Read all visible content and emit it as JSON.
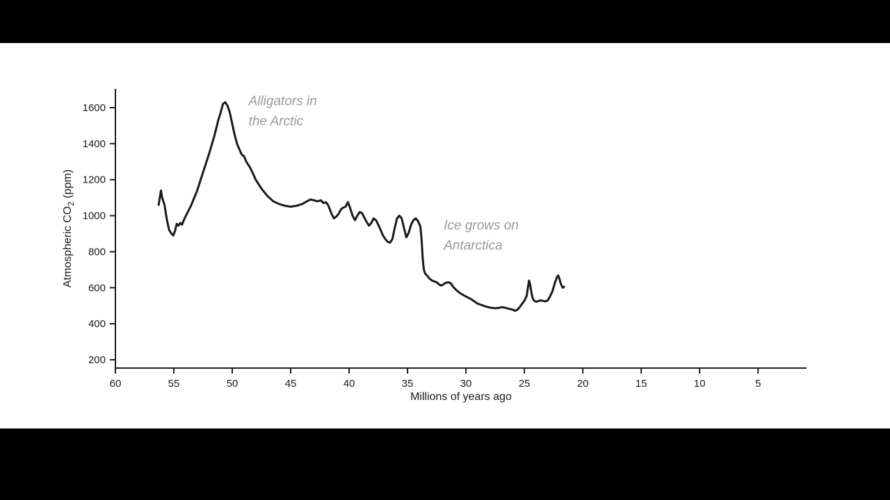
{
  "frame": {
    "background": "#000000",
    "canvas_background": "#ffffff"
  },
  "chart_data": {
    "type": "line",
    "title": "",
    "xlabel": "Millions of years ago",
    "ylabel_parts": {
      "prefix": "Atmospheric CO",
      "subscript": "2",
      "suffix": " (ppm)"
    },
    "x_axis_reversed": true,
    "xlim": [
      60,
      0.85
    ],
    "ylim": [
      154,
      1704
    ],
    "x_ticks": [
      60,
      55,
      50,
      45,
      40,
      35,
      30,
      25,
      20,
      15,
      10,
      5
    ],
    "y_ticks": [
      200,
      400,
      600,
      800,
      1000,
      1200,
      1400,
      1600
    ],
    "grid": false,
    "legend": "none",
    "axis_color": "#1a1a1a",
    "line_color": "#1a1a1a",
    "line_width": 3,
    "annotation_color": "#9a9a9a",
    "series": [
      {
        "name": "Atmospheric CO2",
        "points": [
          [
            56.3,
            1060
          ],
          [
            56.1,
            1140
          ],
          [
            56.0,
            1100
          ],
          [
            55.8,
            1060
          ],
          [
            55.6,
            980
          ],
          [
            55.4,
            920
          ],
          [
            55.2,
            900
          ],
          [
            55.05,
            890
          ],
          [
            54.9,
            915
          ],
          [
            54.75,
            955
          ],
          [
            54.6,
            945
          ],
          [
            54.45,
            960
          ],
          [
            54.3,
            950
          ],
          [
            54.15,
            975
          ],
          [
            54.0,
            995
          ],
          [
            53.5,
            1060
          ],
          [
            53.0,
            1140
          ],
          [
            52.5,
            1240
          ],
          [
            52.0,
            1340
          ],
          [
            51.5,
            1450
          ],
          [
            51.2,
            1530
          ],
          [
            51.0,
            1570
          ],
          [
            50.8,
            1620
          ],
          [
            50.6,
            1630
          ],
          [
            50.4,
            1610
          ],
          [
            50.2,
            1570
          ],
          [
            50.0,
            1510
          ],
          [
            49.8,
            1450
          ],
          [
            49.6,
            1400
          ],
          [
            49.4,
            1370
          ],
          [
            49.2,
            1340
          ],
          [
            49.0,
            1330
          ],
          [
            48.8,
            1300
          ],
          [
            48.5,
            1270
          ],
          [
            48.2,
            1230
          ],
          [
            48.0,
            1200
          ],
          [
            47.5,
            1150
          ],
          [
            47.0,
            1110
          ],
          [
            46.5,
            1080
          ],
          [
            46.0,
            1065
          ],
          [
            45.5,
            1055
          ],
          [
            45.0,
            1050
          ],
          [
            44.5,
            1055
          ],
          [
            44.0,
            1065
          ],
          [
            43.6,
            1080
          ],
          [
            43.3,
            1090
          ],
          [
            43.0,
            1085
          ],
          [
            42.7,
            1080
          ],
          [
            42.4,
            1085
          ],
          [
            42.2,
            1070
          ],
          [
            42.0,
            1075
          ],
          [
            41.8,
            1060
          ],
          [
            41.5,
            1010
          ],
          [
            41.3,
            985
          ],
          [
            41.1,
            995
          ],
          [
            40.9,
            1010
          ],
          [
            40.7,
            1035
          ],
          [
            40.5,
            1045
          ],
          [
            40.3,
            1050
          ],
          [
            40.1,
            1075
          ],
          [
            39.9,
            1040
          ],
          [
            39.7,
            1000
          ],
          [
            39.5,
            975
          ],
          [
            39.3,
            1000
          ],
          [
            39.1,
            1020
          ],
          [
            38.9,
            1015
          ],
          [
            38.7,
            990
          ],
          [
            38.5,
            965
          ],
          [
            38.3,
            945
          ],
          [
            38.1,
            960
          ],
          [
            37.9,
            985
          ],
          [
            37.7,
            975
          ],
          [
            37.5,
            950
          ],
          [
            37.3,
            920
          ],
          [
            37.1,
            890
          ],
          [
            36.9,
            870
          ],
          [
            36.7,
            855
          ],
          [
            36.5,
            850
          ],
          [
            36.3,
            870
          ],
          [
            36.1,
            930
          ],
          [
            35.9,
            985
          ],
          [
            35.7,
            1000
          ],
          [
            35.5,
            985
          ],
          [
            35.3,
            930
          ],
          [
            35.1,
            880
          ],
          [
            34.9,
            905
          ],
          [
            34.7,
            950
          ],
          [
            34.5,
            975
          ],
          [
            34.3,
            985
          ],
          [
            34.1,
            970
          ],
          [
            33.9,
            940
          ],
          [
            33.8,
            870
          ],
          [
            33.7,
            760
          ],
          [
            33.6,
            700
          ],
          [
            33.5,
            680
          ],
          [
            33.3,
            665
          ],
          [
            33.1,
            650
          ],
          [
            32.9,
            640
          ],
          [
            32.7,
            635
          ],
          [
            32.5,
            630
          ],
          [
            32.3,
            618
          ],
          [
            32.1,
            612
          ],
          [
            31.9,
            620
          ],
          [
            31.7,
            628
          ],
          [
            31.5,
            630
          ],
          [
            31.3,
            625
          ],
          [
            31.1,
            605
          ],
          [
            30.8,
            585
          ],
          [
            30.5,
            570
          ],
          [
            30.2,
            558
          ],
          [
            29.9,
            548
          ],
          [
            29.6,
            538
          ],
          [
            29.3,
            525
          ],
          [
            29.0,
            512
          ],
          [
            28.7,
            505
          ],
          [
            28.4,
            498
          ],
          [
            28.1,
            492
          ],
          [
            27.8,
            488
          ],
          [
            27.5,
            486
          ],
          [
            27.2,
            488
          ],
          [
            26.9,
            492
          ],
          [
            26.6,
            488
          ],
          [
            26.3,
            483
          ],
          [
            26.0,
            478
          ],
          [
            25.8,
            472
          ],
          [
            25.6,
            478
          ],
          [
            25.4,
            492
          ],
          [
            25.2,
            510
          ],
          [
            25.0,
            528
          ],
          [
            24.8,
            555
          ],
          [
            24.7,
            600
          ],
          [
            24.6,
            640
          ],
          [
            24.5,
            615
          ],
          [
            24.4,
            575
          ],
          [
            24.3,
            545
          ],
          [
            24.2,
            530
          ],
          [
            24.0,
            522
          ],
          [
            23.8,
            526
          ],
          [
            23.6,
            530
          ],
          [
            23.4,
            527
          ],
          [
            23.2,
            524
          ],
          [
            23.0,
            530
          ],
          [
            22.8,
            552
          ],
          [
            22.6,
            580
          ],
          [
            22.4,
            625
          ],
          [
            22.2,
            660
          ],
          [
            22.1,
            668
          ],
          [
            22.0,
            650
          ],
          [
            21.9,
            625
          ],
          [
            21.8,
            610
          ],
          [
            21.7,
            600
          ],
          [
            21.6,
            605
          ]
        ]
      }
    ],
    "annotations": [
      {
        "lines": [
          "Alligators in",
          "the Arctic"
        ],
        "x": 48.6,
        "y": 1640
      },
      {
        "lines": [
          "Ice grows on",
          "Antarctica"
        ],
        "x": 31.9,
        "y": 950
      }
    ]
  }
}
